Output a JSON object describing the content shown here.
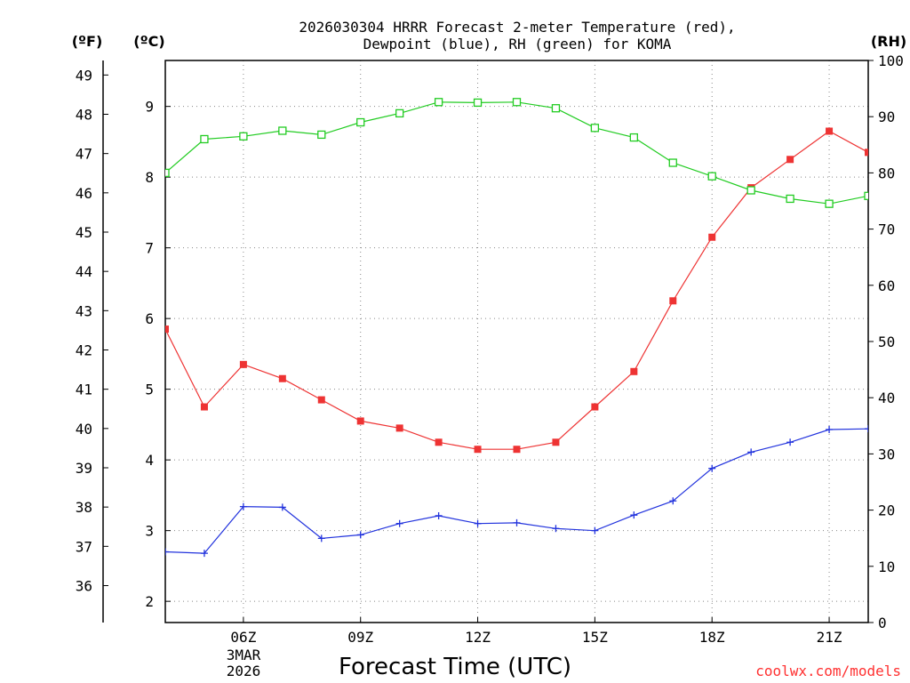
{
  "chart_data": {
    "type": "line",
    "title_line1": "2026030304 HRRR Forecast 2-meter Temperature (red),",
    "title_line2": "Dewpoint (blue), RH (green) for KOMA",
    "xlabel": "Forecast Time (UTC)",
    "credit": "coolwx.com/models",
    "left_outer_unit": "(ºF)",
    "left_inner_unit": "(ºC)",
    "right_unit": "(RH)",
    "x_hours": [
      4,
      5,
      6,
      7,
      8,
      9,
      10,
      11,
      12,
      13,
      14,
      15,
      16,
      17,
      18,
      19,
      20,
      21,
      22
    ],
    "xlim": [
      4,
      22
    ],
    "x_ticks": [
      {
        "hour": 6,
        "label": "06Z"
      },
      {
        "hour": 9,
        "label": "09Z"
      },
      {
        "hour": 12,
        "label": "12Z"
      },
      {
        "hour": 15,
        "label": "15Z"
      },
      {
        "hour": 18,
        "label": "18Z"
      },
      {
        "hour": 21,
        "label": "21Z"
      }
    ],
    "date_label_line1": "3MAR",
    "date_label_line2": "2026",
    "celsius_ylim": [
      1.7,
      9.65
    ],
    "celsius_ticks": [
      2,
      3,
      4,
      5,
      6,
      7,
      8,
      9
    ],
    "fahrenheit_ticks": [
      36,
      37,
      38,
      39,
      40,
      41,
      42,
      43,
      44,
      45,
      46,
      47,
      48,
      49
    ],
    "rh_ylim": [
      0,
      100
    ],
    "rh_ticks": [
      0,
      10,
      20,
      30,
      40,
      50,
      60,
      70,
      80,
      90,
      100
    ],
    "series": [
      {
        "name": "2-meter Temperature",
        "color": "#ee3333",
        "marker": "filled-square",
        "axis": "celsius",
        "values": [
          5.85,
          4.75,
          5.35,
          5.15,
          4.85,
          4.55,
          4.45,
          4.25,
          4.15,
          4.15,
          4.25,
          4.75,
          5.25,
          6.25,
          7.15,
          7.85,
          8.25,
          8.65,
          8.35
        ]
      },
      {
        "name": "Dewpoint",
        "color": "#2233dd",
        "marker": "plus",
        "axis": "celsius",
        "values": [
          2.7,
          2.68,
          3.34,
          3.33,
          2.89,
          2.94,
          3.1,
          3.21,
          3.1,
          3.11,
          3.03,
          3.0,
          3.22,
          3.42,
          3.88,
          4.11,
          4.25,
          4.43,
          4.44
        ]
      },
      {
        "name": "RH",
        "color": "#22cc22",
        "marker": "open-square",
        "axis": "rh",
        "values": [
          80.0,
          86.0,
          86.5,
          87.5,
          86.8,
          89.0,
          90.6,
          92.6,
          92.5,
          92.6,
          91.5,
          88.0,
          86.3,
          81.8,
          79.4,
          76.9,
          75.4,
          74.5,
          75.9
        ]
      }
    ]
  }
}
